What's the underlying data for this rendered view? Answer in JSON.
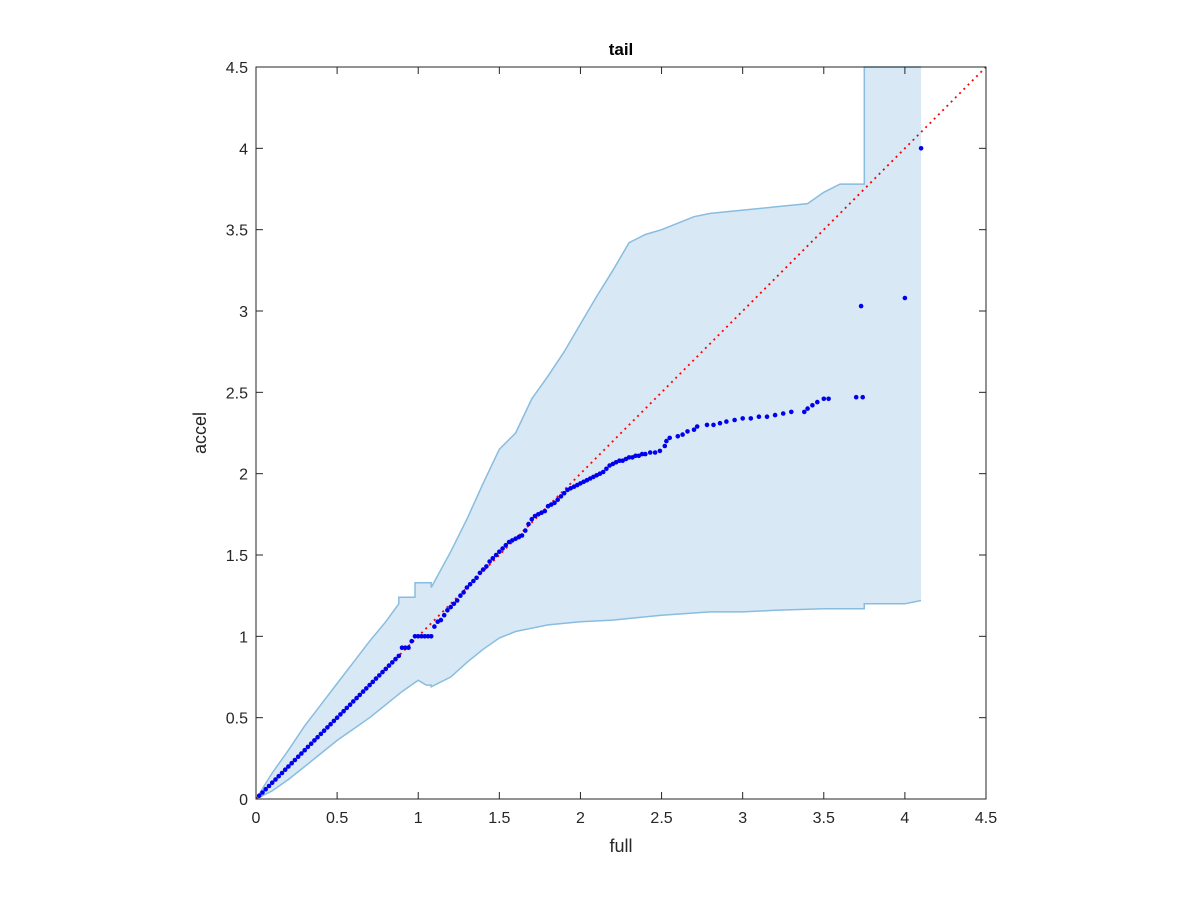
{
  "chart_data": {
    "type": "scatter",
    "title": "tail",
    "xlabel": "full",
    "ylabel": "accel",
    "xlim": [
      0,
      4.5
    ],
    "ylim": [
      0,
      4.5
    ],
    "xticks": [
      "0",
      "0.5",
      "1",
      "1.5",
      "2",
      "2.5",
      "3",
      "3.5",
      "4",
      "4.5"
    ],
    "yticks": [
      "0",
      "0.5",
      "1",
      "1.5",
      "2",
      "2.5",
      "3",
      "3.5",
      "4",
      "4.5"
    ],
    "grid": false,
    "reference_line": {
      "x": [
        0,
        4.5
      ],
      "y": [
        0,
        4.5
      ],
      "style": "dotted",
      "color": "#ff0000"
    },
    "band": {
      "color": "#d8e8f5",
      "edge_color": "#88bde0",
      "upper": [
        [
          0,
          0
        ],
        [
          0.05,
          0.08
        ],
        [
          0.1,
          0.16
        ],
        [
          0.2,
          0.3
        ],
        [
          0.3,
          0.45
        ],
        [
          0.4,
          0.58
        ],
        [
          0.5,
          0.71
        ],
        [
          0.6,
          0.84
        ],
        [
          0.7,
          0.97
        ],
        [
          0.8,
          1.09
        ],
        [
          0.88,
          1.2
        ],
        [
          0.88,
          1.24
        ],
        [
          0.98,
          1.24
        ],
        [
          0.98,
          1.33
        ],
        [
          1.08,
          1.33
        ],
        [
          1.08,
          1.3
        ],
        [
          1.2,
          1.52
        ],
        [
          1.3,
          1.72
        ],
        [
          1.4,
          1.94
        ],
        [
          1.5,
          2.15
        ],
        [
          1.6,
          2.25
        ],
        [
          1.7,
          2.46
        ],
        [
          1.8,
          2.6
        ],
        [
          1.9,
          2.75
        ],
        [
          2.0,
          2.92
        ],
        [
          2.1,
          3.09
        ],
        [
          2.2,
          3.25
        ],
        [
          2.3,
          3.42
        ],
        [
          2.4,
          3.47
        ],
        [
          2.5,
          3.5
        ],
        [
          2.6,
          3.54
        ],
        [
          2.7,
          3.58
        ],
        [
          2.8,
          3.6
        ],
        [
          3.0,
          3.62
        ],
        [
          3.2,
          3.64
        ],
        [
          3.4,
          3.66
        ],
        [
          3.5,
          3.73
        ],
        [
          3.6,
          3.78
        ],
        [
          3.75,
          3.78
        ],
        [
          3.75,
          4.5
        ],
        [
          4.1,
          4.5
        ]
      ],
      "lower": [
        [
          0,
          0
        ],
        [
          0.1,
          0.05
        ],
        [
          0.2,
          0.12
        ],
        [
          0.3,
          0.2
        ],
        [
          0.4,
          0.28
        ],
        [
          0.5,
          0.36
        ],
        [
          0.6,
          0.43
        ],
        [
          0.7,
          0.5
        ],
        [
          0.8,
          0.58
        ],
        [
          0.9,
          0.66
        ],
        [
          1.0,
          0.73
        ],
        [
          1.05,
          0.7
        ],
        [
          1.08,
          0.7
        ],
        [
          1.08,
          0.69
        ],
        [
          1.2,
          0.75
        ],
        [
          1.3,
          0.84
        ],
        [
          1.4,
          0.92
        ],
        [
          1.5,
          0.99
        ],
        [
          1.6,
          1.03
        ],
        [
          1.7,
          1.05
        ],
        [
          1.8,
          1.07
        ],
        [
          2.0,
          1.09
        ],
        [
          2.2,
          1.1
        ],
        [
          2.5,
          1.13
        ],
        [
          2.8,
          1.15
        ],
        [
          3.0,
          1.15
        ],
        [
          3.2,
          1.16
        ],
        [
          3.5,
          1.17
        ],
        [
          3.75,
          1.17
        ],
        [
          3.75,
          1.2
        ],
        [
          4.0,
          1.2
        ],
        [
          4.1,
          1.22
        ]
      ]
    },
    "series": [
      {
        "color": "#0000ee",
        "points": [
          [
            0.02,
            0.02
          ],
          [
            0.04,
            0.04
          ],
          [
            0.06,
            0.06
          ],
          [
            0.08,
            0.08
          ],
          [
            0.1,
            0.1
          ],
          [
            0.12,
            0.12
          ],
          [
            0.14,
            0.14
          ],
          [
            0.16,
            0.16
          ],
          [
            0.18,
            0.18
          ],
          [
            0.2,
            0.2
          ],
          [
            0.22,
            0.22
          ],
          [
            0.24,
            0.24
          ],
          [
            0.26,
            0.26
          ],
          [
            0.28,
            0.28
          ],
          [
            0.3,
            0.3
          ],
          [
            0.32,
            0.32
          ],
          [
            0.34,
            0.34
          ],
          [
            0.36,
            0.36
          ],
          [
            0.38,
            0.38
          ],
          [
            0.4,
            0.4
          ],
          [
            0.42,
            0.42
          ],
          [
            0.44,
            0.44
          ],
          [
            0.46,
            0.46
          ],
          [
            0.48,
            0.48
          ],
          [
            0.5,
            0.5
          ],
          [
            0.52,
            0.52
          ],
          [
            0.54,
            0.54
          ],
          [
            0.56,
            0.56
          ],
          [
            0.58,
            0.58
          ],
          [
            0.6,
            0.6
          ],
          [
            0.62,
            0.62
          ],
          [
            0.64,
            0.64
          ],
          [
            0.66,
            0.66
          ],
          [
            0.68,
            0.68
          ],
          [
            0.7,
            0.7
          ],
          [
            0.72,
            0.72
          ],
          [
            0.74,
            0.74
          ],
          [
            0.76,
            0.76
          ],
          [
            0.78,
            0.78
          ],
          [
            0.8,
            0.8
          ],
          [
            0.82,
            0.82
          ],
          [
            0.84,
            0.84
          ],
          [
            0.86,
            0.86
          ],
          [
            0.88,
            0.88
          ],
          [
            0.9,
            0.93
          ],
          [
            0.92,
            0.93
          ],
          [
            0.94,
            0.93
          ],
          [
            0.96,
            0.97
          ],
          [
            0.98,
            1.0
          ],
          [
            1.0,
            1.0
          ],
          [
            1.02,
            1.0
          ],
          [
            1.04,
            1.0
          ],
          [
            1.06,
            1.0
          ],
          [
            1.08,
            1.0
          ],
          [
            1.1,
            1.06
          ],
          [
            1.12,
            1.09
          ],
          [
            1.14,
            1.1
          ],
          [
            1.16,
            1.13
          ],
          [
            1.18,
            1.16
          ],
          [
            1.2,
            1.18
          ],
          [
            1.22,
            1.2
          ],
          [
            1.24,
            1.22
          ],
          [
            1.26,
            1.25
          ],
          [
            1.28,
            1.27
          ],
          [
            1.3,
            1.3
          ],
          [
            1.32,
            1.32
          ],
          [
            1.34,
            1.34
          ],
          [
            1.36,
            1.36
          ],
          [
            1.38,
            1.39
          ],
          [
            1.4,
            1.41
          ],
          [
            1.42,
            1.43
          ],
          [
            1.44,
            1.46
          ],
          [
            1.46,
            1.48
          ],
          [
            1.48,
            1.5
          ],
          [
            1.5,
            1.52
          ],
          [
            1.52,
            1.54
          ],
          [
            1.54,
            1.56
          ],
          [
            1.56,
            1.58
          ],
          [
            1.58,
            1.59
          ],
          [
            1.6,
            1.6
          ],
          [
            1.62,
            1.61
          ],
          [
            1.64,
            1.62
          ],
          [
            1.66,
            1.65
          ],
          [
            1.68,
            1.69
          ],
          [
            1.7,
            1.72
          ],
          [
            1.72,
            1.74
          ],
          [
            1.74,
            1.75
          ],
          [
            1.76,
            1.76
          ],
          [
            1.78,
            1.77
          ],
          [
            1.8,
            1.8
          ],
          [
            1.82,
            1.81
          ],
          [
            1.84,
            1.82
          ],
          [
            1.86,
            1.84
          ],
          [
            1.88,
            1.86
          ],
          [
            1.9,
            1.88
          ],
          [
            1.92,
            1.9
          ],
          [
            1.94,
            1.91
          ],
          [
            1.96,
            1.92
          ],
          [
            1.98,
            1.93
          ],
          [
            2.0,
            1.94
          ],
          [
            2.02,
            1.95
          ],
          [
            2.04,
            1.96
          ],
          [
            2.06,
            1.97
          ],
          [
            2.08,
            1.98
          ],
          [
            2.1,
            1.99
          ],
          [
            2.12,
            2.0
          ],
          [
            2.14,
            2.01
          ],
          [
            2.16,
            2.03
          ],
          [
            2.18,
            2.05
          ],
          [
            2.2,
            2.06
          ],
          [
            2.22,
            2.07
          ],
          [
            2.24,
            2.08
          ],
          [
            2.26,
            2.08
          ],
          [
            2.28,
            2.09
          ],
          [
            2.3,
            2.1
          ],
          [
            2.32,
            2.1
          ],
          [
            2.34,
            2.11
          ],
          [
            2.36,
            2.11
          ],
          [
            2.38,
            2.12
          ],
          [
            2.4,
            2.12
          ],
          [
            2.43,
            2.13
          ],
          [
            2.46,
            2.13
          ],
          [
            2.49,
            2.14
          ],
          [
            2.52,
            2.17
          ],
          [
            2.53,
            2.2
          ],
          [
            2.55,
            2.22
          ],
          [
            2.6,
            2.23
          ],
          [
            2.63,
            2.24
          ],
          [
            2.66,
            2.26
          ],
          [
            2.7,
            2.27
          ],
          [
            2.72,
            2.29
          ],
          [
            2.78,
            2.3
          ],
          [
            2.82,
            2.3
          ],
          [
            2.86,
            2.31
          ],
          [
            2.9,
            2.32
          ],
          [
            2.95,
            2.33
          ],
          [
            3.0,
            2.34
          ],
          [
            3.05,
            2.34
          ],
          [
            3.1,
            2.35
          ],
          [
            3.15,
            2.35
          ],
          [
            3.2,
            2.36
          ],
          [
            3.25,
            2.37
          ],
          [
            3.3,
            2.38
          ],
          [
            3.38,
            2.38
          ],
          [
            3.4,
            2.4
          ],
          [
            3.43,
            2.42
          ],
          [
            3.46,
            2.44
          ],
          [
            3.5,
            2.46
          ],
          [
            3.53,
            2.46
          ],
          [
            3.7,
            2.47
          ],
          [
            3.74,
            2.47
          ],
          [
            3.73,
            3.03
          ],
          [
            4.0,
            3.08
          ],
          [
            4.1,
            4.0
          ]
        ]
      }
    ]
  }
}
